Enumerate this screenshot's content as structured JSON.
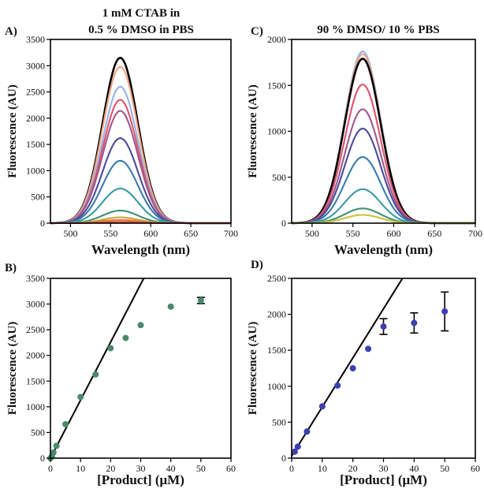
{
  "figure": {
    "title_left_line1": "1 mM CTAB in",
    "title_left_line2": "0.5 % DMSO in PBS",
    "title_right": "90 % DMSO/ 10 % PBS"
  },
  "chart_data": [
    {
      "id": "A",
      "panel_label": "A)",
      "type": "line",
      "xlabel": "Wavelength (nm)",
      "ylabel": "Fluorescence (AU)",
      "xlim": [
        475,
        700
      ],
      "ylim": [
        0,
        3500
      ],
      "xticks": [
        500,
        550,
        600,
        650,
        700
      ],
      "yticks": [
        0,
        500,
        1000,
        1500,
        2000,
        2500,
        3000,
        3500
      ],
      "peak_wavelength": 562,
      "series": [
        {
          "peak": 3150,
          "color": "#000000"
        },
        {
          "peak": 2980,
          "color": "#f4a582"
        },
        {
          "peak": 2600,
          "color": "#92b4e8"
        },
        {
          "peak": 2350,
          "color": "#e0526a"
        },
        {
          "peak": 2140,
          "color": "#a0588c"
        },
        {
          "peak": 1620,
          "color": "#4b4a9a"
        },
        {
          "peak": 1190,
          "color": "#3a7bab"
        },
        {
          "peak": 660,
          "color": "#3a9aa6"
        },
        {
          "peak": 240,
          "color": "#3f8f73"
        },
        {
          "peak": 110,
          "color": "#c9a23a"
        },
        {
          "peak": 60,
          "color": "#e07a2e"
        },
        {
          "peak": 25,
          "color": "#d9534f"
        }
      ]
    },
    {
      "id": "B",
      "panel_label": "B)",
      "type": "scatter",
      "xlabel": "[Product] (μM)",
      "ylabel": "Fluorescence (AU)",
      "xlim": [
        0,
        60
      ],
      "ylim": [
        0,
        3500
      ],
      "xticks": [
        0,
        10,
        20,
        30,
        40,
        50,
        60
      ],
      "yticks": [
        0,
        500,
        1000,
        1500,
        2000,
        2500,
        3000,
        3500
      ],
      "point_color": "#4a8a6a",
      "points": [
        {
          "x": 0,
          "y": 0
        },
        {
          "x": 0.5,
          "y": 40
        },
        {
          "x": 1,
          "y": 110
        },
        {
          "x": 2,
          "y": 240
        },
        {
          "x": 5,
          "y": 660
        },
        {
          "x": 10,
          "y": 1190
        },
        {
          "x": 15,
          "y": 1630
        },
        {
          "x": 20,
          "y": 2140
        },
        {
          "x": 25,
          "y": 2340
        },
        {
          "x": 30,
          "y": 2590
        },
        {
          "x": 40,
          "y": 2950
        },
        {
          "x": 50,
          "y": 3070,
          "err": 60
        }
      ],
      "fit_line": {
        "x1": 0,
        "y1": 0,
        "x2": 31,
        "y2": 3500
      }
    },
    {
      "id": "C",
      "panel_label": "C)",
      "type": "line",
      "xlabel": "Wavelength (nm)",
      "ylabel": "Fluorescence (AU)",
      "xlim": [
        475,
        700
      ],
      "ylim": [
        0,
        2000
      ],
      "xticks": [
        500,
        550,
        600,
        650,
        700
      ],
      "yticks": [
        0,
        500,
        1000,
        1500,
        2000
      ],
      "peak_wavelength": 562,
      "series": [
        {
          "peak": 1870,
          "color": "#92b4e8"
        },
        {
          "peak": 1840,
          "color": "#f4a582"
        },
        {
          "peak": 1790,
          "color": "#000000"
        },
        {
          "peak": 1510,
          "color": "#e0526a"
        },
        {
          "peak": 1240,
          "color": "#a0588c"
        },
        {
          "peak": 1030,
          "color": "#4b4a9a"
        },
        {
          "peak": 720,
          "color": "#3a7bab"
        },
        {
          "peak": 370,
          "color": "#3a9aa6"
        },
        {
          "peak": 160,
          "color": "#3f8f73"
        },
        {
          "peak": 90,
          "color": "#c9c23a"
        }
      ]
    },
    {
      "id": "D",
      "panel_label": "D)",
      "type": "scatter",
      "xlabel": "[Product] (μM)",
      "ylabel": "Fluorescence (AU)",
      "xlim": [
        0,
        60
      ],
      "ylim": [
        0,
        2500
      ],
      "xticks": [
        0,
        10,
        20,
        30,
        40,
        50,
        60
      ],
      "yticks": [
        0,
        500,
        1000,
        1500,
        2000,
        2500
      ],
      "point_color": "#3b3fb0",
      "points": [
        {
          "x": 1,
          "y": 90
        },
        {
          "x": 2,
          "y": 160
        },
        {
          "x": 5,
          "y": 370
        },
        {
          "x": 10,
          "y": 720
        },
        {
          "x": 15,
          "y": 1010
        },
        {
          "x": 20,
          "y": 1250
        },
        {
          "x": 25,
          "y": 1520
        },
        {
          "x": 30,
          "y": 1830,
          "err": 110
        },
        {
          "x": 40,
          "y": 1880,
          "err": 140
        },
        {
          "x": 50,
          "y": 2040,
          "err": 270
        }
      ],
      "fit_line": {
        "x1": 0,
        "y1": 30,
        "x2": 36.2,
        "y2": 2500
      }
    }
  ]
}
